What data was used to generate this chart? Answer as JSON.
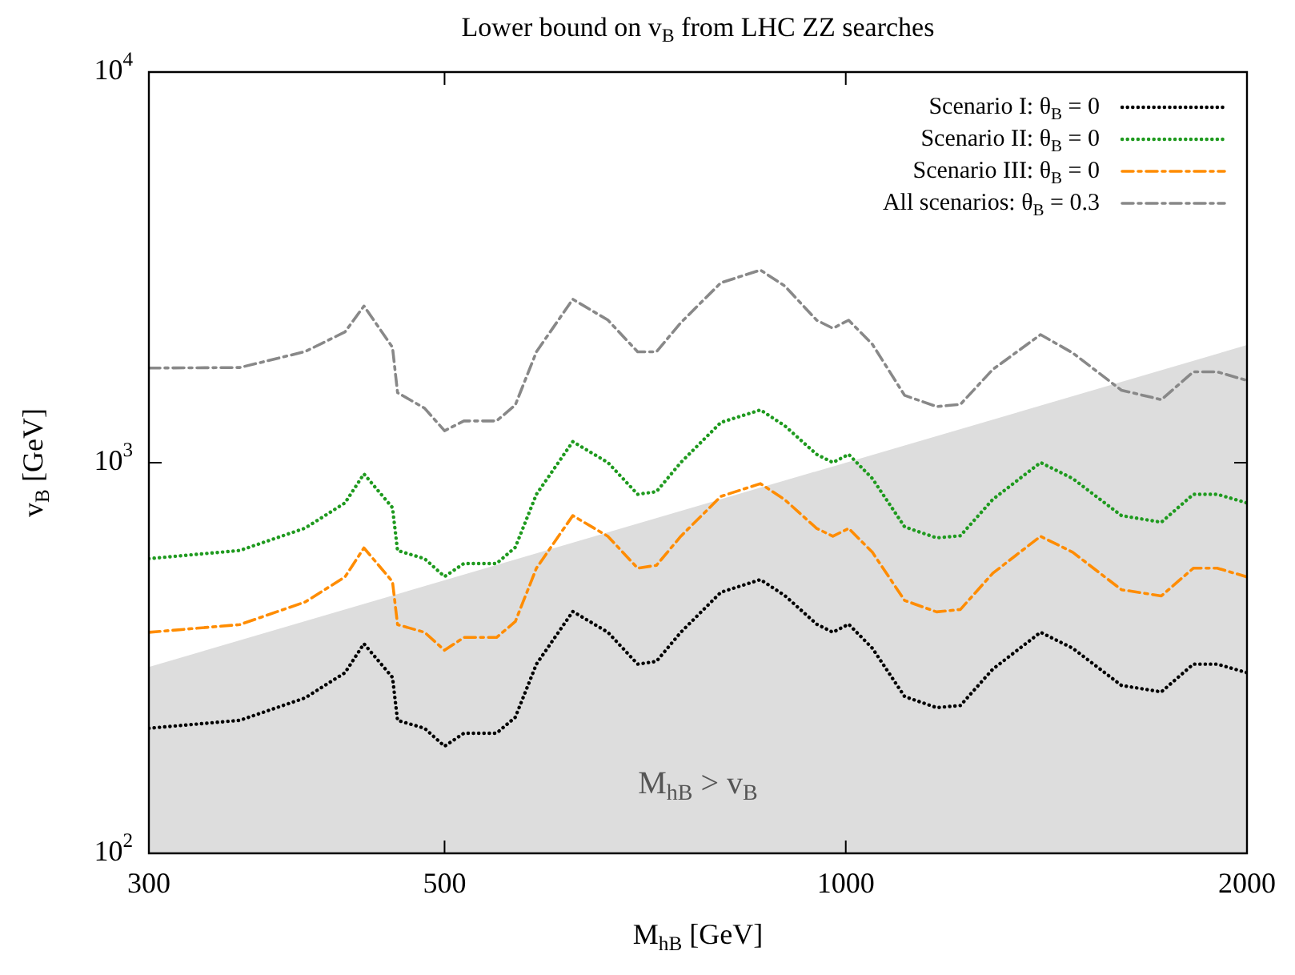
{
  "chart_data": {
    "type": "line",
    "title": "Lower bound on v$_{B}$ from LHC ZZ searches",
    "xlabel": "M$_{hB}$ [GeV]",
    "ylabel": "v$_{B}$ [GeV]",
    "log": "xy",
    "grid": false,
    "legend": "top right",
    "marker": "none",
    "xlim": [
      300,
      2000
    ],
    "xticks": [
      300,
      500,
      1000,
      2000
    ],
    "ylim": [
      100,
      10000
    ],
    "yticks": [
      {
        "value": 100,
        "label": "10$^{2}$"
      },
      {
        "value": 1000,
        "label": "10$^{3}$"
      },
      {
        "value": 10000,
        "label": "10$^{4}$"
      }
    ],
    "x": [
      300,
      351,
      393,
      421,
      435,
      457,
      461,
      483,
      500,
      517,
      547,
      565,
      586,
      624,
      663,
      698,
      721,
      752,
      806,
      863,
      900,
      951,
      978,
      1005,
      1047,
      1107,
      1170,
      1219,
      1289,
      1400,
      1480,
      1610,
      1725,
      1823,
      1900,
      2000
    ],
    "series": [
      {
        "type": "area",
        "color": "#dddddd",
        "x": [
          300,
          2000
        ],
        "values": [
          300,
          2000
        ]
      },
      {
        "name": "Scenario I: θ$_{B}$ = 0",
        "color": "#000000",
        "line_style": "dotted",
        "values": [
          209,
          219,
          250,
          290,
          344,
          282,
          219,
          209,
          188,
          203,
          203,
          223,
          305,
          416,
          368,
          305,
          310,
          368,
          466,
          502,
          457,
          386,
          368,
          386,
          335,
          252,
          236,
          239,
          296,
          368,
          335,
          269,
          259,
          305,
          305,
          290
        ]
      },
      {
        "name": "Scenario II: θ$_{B}$ = 0",
        "color": "#1f9a1f",
        "line_style": "dotted",
        "values": [
          568,
          596,
          680,
          789,
          936,
          767,
          596,
          568,
          511,
          552,
          552,
          607,
          830,
          1132,
          1001,
          830,
          843,
          1001,
          1268,
          1365,
          1243,
          1050,
          1001,
          1050,
          911,
          685,
          642,
          650,
          805,
          1001,
          911,
          732,
          704,
          830,
          830,
          789
        ]
      },
      {
        "name": "Scenario III: θ$_{B}$ = 0",
        "color": "#ff8c00",
        "line_style": "dashed",
        "values": [
          368,
          385,
          440,
          510,
          605,
          496,
          385,
          368,
          331,
          357,
          357,
          392,
          537,
          732,
          648,
          537,
          546,
          648,
          820,
          884,
          804,
          679,
          648,
          679,
          590,
          444,
          415,
          421,
          521,
          648,
          590,
          473,
          456,
          537,
          537,
          510
        ]
      },
      {
        "name": "All scenarios: θ$_{B}$ = 0.3",
        "color": "#888888",
        "line_style": "dashed",
        "values": [
          1747,
          1752,
          1925,
          2161,
          2518,
          1974,
          1511,
          1379,
          1207,
          1279,
          1279,
          1405,
          1922,
          2621,
          2318,
          1922,
          1922,
          2282,
          2889,
          3112,
          2833,
          2316,
          2208,
          2316,
          2010,
          1487,
          1392,
          1410,
          1732,
          2127,
          1910,
          1533,
          1450,
          1708,
          1708,
          1624
        ]
      }
    ],
    "annotations": [
      "M$_{hB}$ > v$_{B}$"
    ]
  }
}
